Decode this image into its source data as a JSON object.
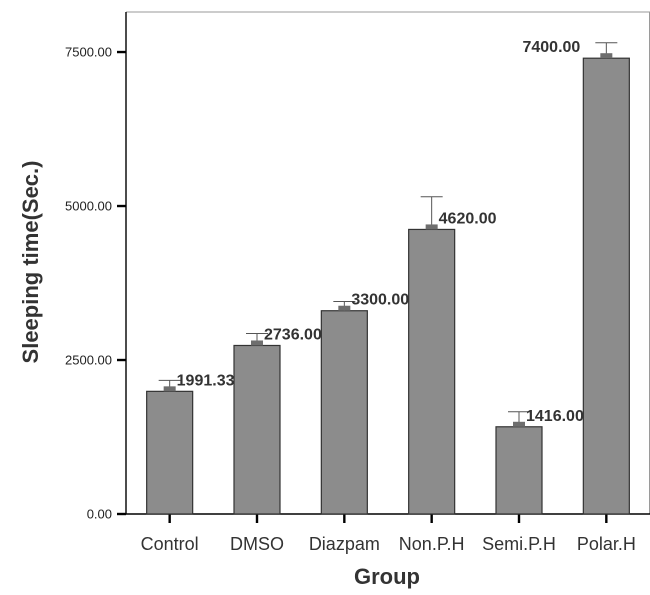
{
  "chart_data": {
    "type": "bar",
    "title": "",
    "xlabel": "Group",
    "ylabel": "Sleeping time(Sec.)",
    "categories": [
      "Control",
      "DMSO",
      "Diazpam",
      "Non.P.H",
      "Semi.P.H",
      "Polar.H"
    ],
    "values": [
      1991.33,
      2736.0,
      3300.0,
      4620.0,
      1416.0,
      7400.0
    ],
    "value_labels": [
      "1991.33",
      "2736.00",
      "3300.00",
      "4620.00",
      "1416.00",
      "7400.00"
    ],
    "error_upper": [
      2170,
      2930,
      3450,
      5150,
      1660,
      7650
    ],
    "ylim": [
      0,
      8150
    ],
    "yticks": [
      0,
      2500,
      5000,
      7500
    ],
    "ytick_labels": [
      "0.00",
      "2500.00",
      "5000.00",
      "7500.00"
    ],
    "grid": false,
    "legend": "none",
    "colors": {
      "bar_fill": "#8c8c8c",
      "bar_stroke": "#333333",
      "mean_marker": "#6e6e6e",
      "axis": "#000000",
      "frame": "#9a9a9a",
      "label": "#333333"
    }
  }
}
